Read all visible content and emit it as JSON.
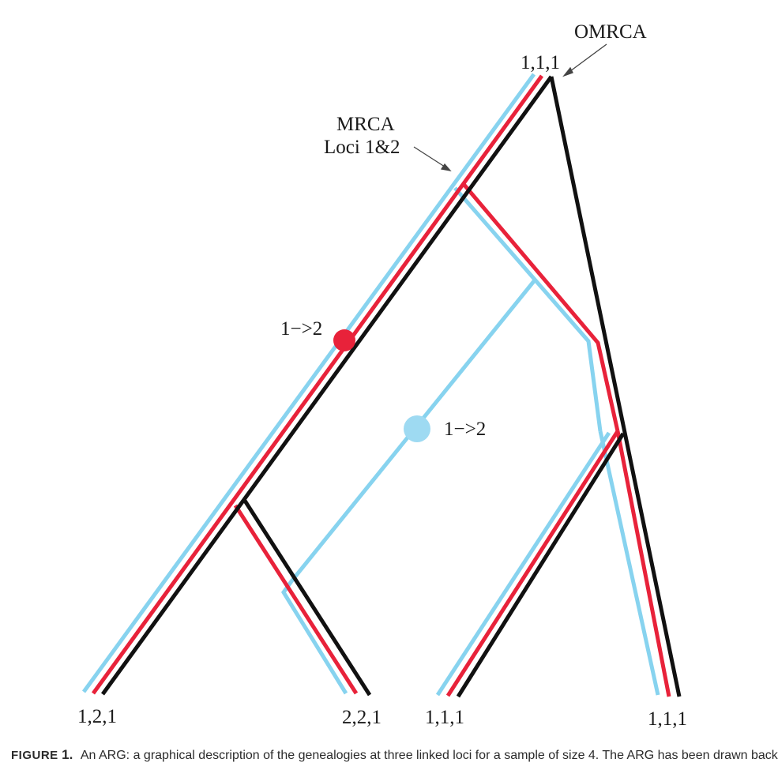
{
  "diagram": {
    "labels": {
      "omrca": "OMRCA",
      "root_state": "1,1,1",
      "mrca_line1": "MRCA",
      "mrca_line2": "Loci 1&2",
      "migration_upper": "1−>2",
      "migration_lower": "1−>2"
    },
    "leaves": [
      "1,2,1",
      "2,2,1",
      "1,1,1",
      "1,1,1"
    ],
    "locus_colors": {
      "locus_1": "#87d3ef",
      "locus_2": "#e8223a",
      "locus_3": "#111111"
    },
    "migration_colors": {
      "upper": "#e8223a",
      "lower": "#9edaf2"
    }
  },
  "caption": {
    "figure_label": "FIGURE",
    "figure_number": "1.",
    "text": "An ARG: a graphical description of the genealogies at three linked loci for a sample of size 4. The ARG has been drawn back"
  }
}
